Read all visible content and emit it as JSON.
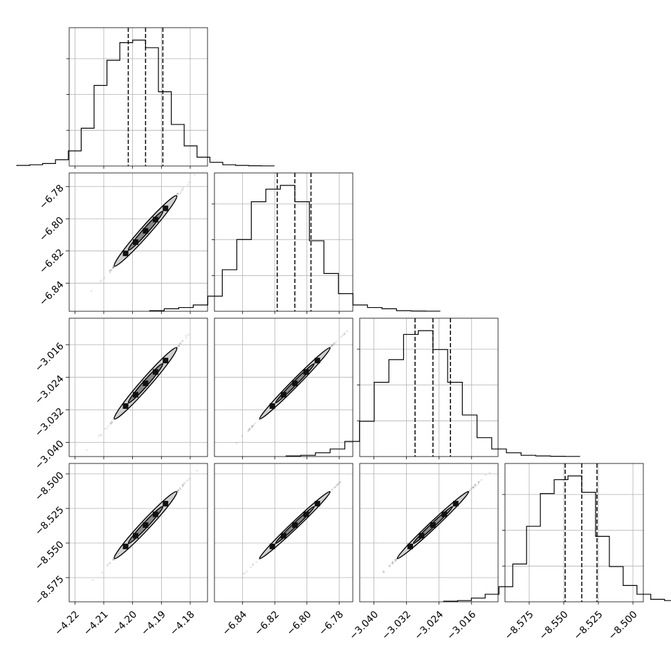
{
  "chart_data": {
    "type": "corner",
    "style": {
      "colors": {
        "ink": "#000000",
        "grid": "#b0b0b0",
        "scatter": "#4a4a4a",
        "contour_fill": "#cfcfcf"
      },
      "grid": true
    },
    "parameters": [
      {
        "mean": -4.1955,
        "std": 0.0047,
        "range": [
          -4.222,
          -4.174
        ],
        "ticks": [
          -4.22,
          -4.21,
          -4.2,
          -4.19,
          -4.18
        ],
        "tick_labels": [
          "−4.22",
          "−4.21",
          "−4.20",
          "−4.19",
          "−4.18"
        ],
        "quantiles": [
          -4.2015,
          -4.1955,
          -4.1895
        ],
        "hist_weights": [
          0.005,
          0.01,
          0.02,
          0.05,
          0.12,
          0.3,
          0.64,
          0.84,
          0.98,
          1.0,
          0.94,
          0.59,
          0.33,
          0.16,
          0.07,
          0.03,
          0.01,
          0.005,
          0.002,
          0.001
        ]
      },
      {
        "mean": -6.8075,
        "std": 0.0095,
        "range": [
          -6.8575,
          -6.7715
        ],
        "ticks": [
          -6.84,
          -6.82,
          -6.8,
          -6.78
        ],
        "tick_labels": [
          "−6.84",
          "−6.82",
          "−6.80",
          "−6.78"
        ],
        "quantiles": [
          -6.8185,
          -6.8075,
          -6.7975
        ],
        "hist_weights": [
          0.005,
          0.02,
          0.03,
          0.05,
          0.12,
          0.33,
          0.57,
          0.87,
          0.97,
          1.0,
          0.87,
          0.56,
          0.3,
          0.14,
          0.05,
          0.03,
          0.02,
          0.005,
          0.002,
          0.001
        ]
      },
      {
        "mean": -3.0255,
        "std": 0.0038,
        "range": [
          -3.0435,
          -3.0095
        ],
        "ticks": [
          -3.04,
          -3.032,
          -3.024,
          -3.016
        ],
        "tick_labels": [
          "−3.040",
          "−3.032",
          "−3.024",
          "−3.016"
        ],
        "quantiles": [
          -3.0299,
          -3.0255,
          -3.0212
        ],
        "hist_weights": [
          0.005,
          0.01,
          0.03,
          0.06,
          0.12,
          0.28,
          0.59,
          0.77,
          0.97,
          1.0,
          0.85,
          0.59,
          0.33,
          0.15,
          0.06,
          0.03,
          0.01,
          0.005,
          0.002,
          0.001
        ]
      },
      {
        "mean": -8.537,
        "std": 0.0105,
        "range": [
          -8.5925,
          -8.4925
        ],
        "ticks": [
          -8.575,
          -8.55,
          -8.525,
          -8.5
        ],
        "tick_labels": [
          "−8.575",
          "−8.550",
          "−8.525",
          "−8.500"
        ],
        "quantiles": [
          -8.549,
          -8.537,
          -8.526
        ],
        "hist_weights": [
          0.005,
          0.01,
          0.03,
          0.06,
          0.12,
          0.3,
          0.6,
          0.86,
          0.97,
          1.0,
          0.87,
          0.52,
          0.28,
          0.13,
          0.06,
          0.02,
          0.01,
          0.005,
          0.002,
          0.001
        ]
      }
    ],
    "correlations": [
      [
        1,
        0.999,
        0.999,
        0.999
      ],
      [
        0.999,
        1,
        0.9995,
        0.9995
      ],
      [
        0.999,
        0.9995,
        1,
        0.9995
      ],
      [
        0.999,
        0.9995,
        0.9995,
        1
      ]
    ]
  }
}
